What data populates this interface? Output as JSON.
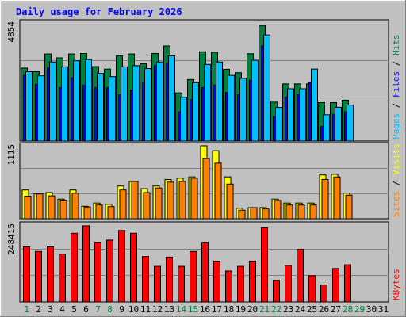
{
  "chart_data": {
    "type": "bar",
    "title": "Daily usage for February 2026",
    "days": [
      "1",
      "2",
      "3",
      "4",
      "5",
      "6",
      "7",
      "8",
      "9",
      "10",
      "11",
      "12",
      "13",
      "14",
      "15",
      "16",
      "17",
      "18",
      "19",
      "20",
      "21",
      "22",
      "23",
      "24",
      "25",
      "26",
      "27",
      "28",
      "29",
      "30",
      "31"
    ],
    "weekend_days": [
      "1",
      "7",
      "8",
      "14",
      "15",
      "21",
      "22",
      "28",
      "29"
    ],
    "panels": [
      {
        "name": "hits-files-pages",
        "ymax_label": "4854",
        "ymax": 4854,
        "series": [
          {
            "name": "Hits",
            "color": "#008040",
            "values": [
              3000,
              2850,
              3580,
              3420,
              3580,
              3600,
              3060,
              2960,
              3500,
              3580,
              3180,
              3600,
              3910,
              1980,
              2530,
              3670,
              3650,
              2950,
              2810,
              3590,
              4750,
              1600,
              2350,
              2350,
              2350,
              1580,
              1580,
              1680,
              0,
              0,
              0
            ]
          },
          {
            "name": "Files",
            "color": "#0000ff",
            "values": [
              2700,
              2330,
              3000,
              2200,
              2600,
              2300,
              2200,
              2200,
              1900,
              2100,
              2400,
              3100,
              3200,
              1200,
              1700,
              2200,
              2300,
              2000,
              1900,
              2500,
              3900,
              1000,
              1800,
              1900,
              2400,
              600,
              1100,
              1200,
              0,
              0,
              0
            ]
          },
          {
            "name": "Pages",
            "color": "#00c0ff",
            "values": [
              2850,
              2680,
              3250,
              3050,
              3300,
              3350,
              2780,
              2650,
              3050,
              3100,
              2980,
              3250,
              3500,
              1800,
              2400,
              3150,
              3250,
              2700,
              2580,
              3320,
              4360,
              1380,
              2150,
              2150,
              2960,
              1080,
              1390,
              1480,
              0,
              0,
              0
            ]
          }
        ],
        "axis_label_parts": [
          {
            "text": "Pages",
            "color": "#00c0ff"
          },
          {
            "text": " / ",
            "color": "#000000"
          },
          {
            "text": "Files",
            "color": "#0000ff"
          },
          {
            "text": " / ",
            "color": "#000000"
          },
          {
            "text": "Hits",
            "color": "#008040"
          }
        ]
      },
      {
        "name": "visits-sites",
        "ymax_label": "1115",
        "ymax": 1115,
        "series": [
          {
            "name": "Visits",
            "color": "#ffff00",
            "values": [
              440,
              380,
              400,
              300,
              440,
              190,
              240,
              220,
              500,
              570,
              460,
              500,
              600,
              620,
              640,
              1115,
              1040,
              640,
              160,
              170,
              170,
              300,
              240,
              240,
              240,
              670,
              680,
              390,
              0,
              0,
              0
            ]
          },
          {
            "name": "Sites",
            "color": "#ff8000",
            "values": [
              345,
              380,
              350,
              285,
              390,
              180,
              210,
              185,
              440,
              570,
              400,
              470,
              560,
              570,
              620,
              920,
              850,
              530,
              130,
              170,
              150,
              280,
              210,
              210,
              210,
              600,
              640,
              360,
              0,
              0,
              0
            ]
          }
        ],
        "axis_label_parts": [
          {
            "text": "Sites",
            "color": "#ff8000"
          },
          {
            "text": " / ",
            "color": "#000000"
          },
          {
            "text": "Visits",
            "color": "#ffff00"
          }
        ]
      },
      {
        "name": "kbytes",
        "ymax_label": "248415",
        "ymax": 248415,
        "series": [
          {
            "name": "KBytes",
            "color": "#ff0000",
            "values": [
              178000,
              163000,
              178000,
              155000,
              222000,
              246000,
              193000,
              200000,
              231000,
              222000,
              147000,
              115000,
              145000,
              115000,
              163000,
              193000,
              132000,
              100000,
              115000,
              132000,
              240000,
              70000,
              118000,
              170000,
              85000,
              55000,
              108000,
              120000,
              0,
              0,
              0
            ]
          }
        ],
        "axis_label_parts": [
          {
            "text": "KBytes",
            "color": "#ff0000"
          }
        ]
      }
    ]
  }
}
